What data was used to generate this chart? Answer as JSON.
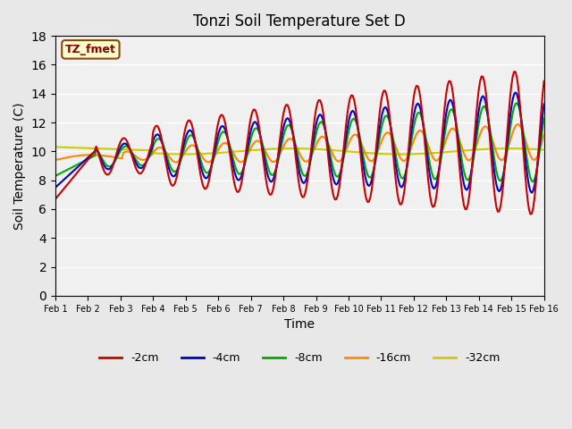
{
  "title": "Tonzi Soil Temperature Set D",
  "xlabel": "Time",
  "ylabel": "Soil Temperature (C)",
  "ylim": [
    0,
    18
  ],
  "yticks": [
    0,
    2,
    4,
    6,
    8,
    10,
    12,
    14,
    16,
    18
  ],
  "xlim": [
    0,
    15
  ],
  "xtick_labels": [
    "Feb 1",
    "Feb 2",
    "Feb 3",
    "Feb 4",
    "Feb 5",
    "Feb 6",
    "Feb 7",
    "Feb 8",
    "Feb 9",
    "Feb 10",
    "Feb 11",
    "Feb 12",
    "Feb 13",
    "Feb 14",
    "Feb 15",
    "Feb 16"
  ],
  "legend_label": "TZ_fmet",
  "series_labels": [
    "-2cm",
    "-4cm",
    "-8cm",
    "-16cm",
    "-32cm"
  ],
  "series_colors": [
    "#cc0000",
    "#0000cc",
    "#00aa00",
    "#ff8800",
    "#cccc00"
  ],
  "n_points": 361,
  "background_color": "#e8e8e8",
  "plot_bg_color": "#f0f0f0"
}
